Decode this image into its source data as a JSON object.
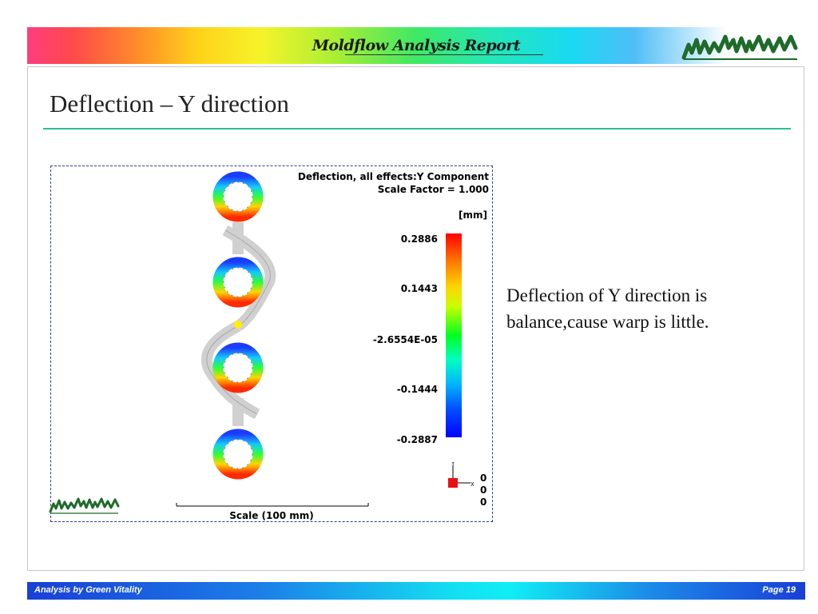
{
  "header": {
    "title": "Moldflow Analysis Report",
    "logo_text": "moldflow",
    "logo_color": "#1e6b2a"
  },
  "slide": {
    "title": "Deflection – Y direction",
    "body_text": "Deflection of Y direction is balance,cause warp is little."
  },
  "plot": {
    "title_line1": "Deflection, all effects:Y Component",
    "title_line2": "Scale Factor = 1.000",
    "unit": "[mm]",
    "legend_ticks": [
      "0.2886",
      "0.1443",
      "-2.6554E-05",
      "-0.1444",
      "-0.2887"
    ],
    "coord_values": [
      "0",
      "0",
      "0"
    ],
    "scale_label": "Scale (100 mm)",
    "logo_text": "moldflow",
    "colormap": [
      "#ff0000",
      "#ffd400",
      "#00ff20",
      "#00b4ff",
      "#0000ff"
    ]
  },
  "footer": {
    "left": "Analysis by Green Vitality",
    "right": "Page  19"
  }
}
